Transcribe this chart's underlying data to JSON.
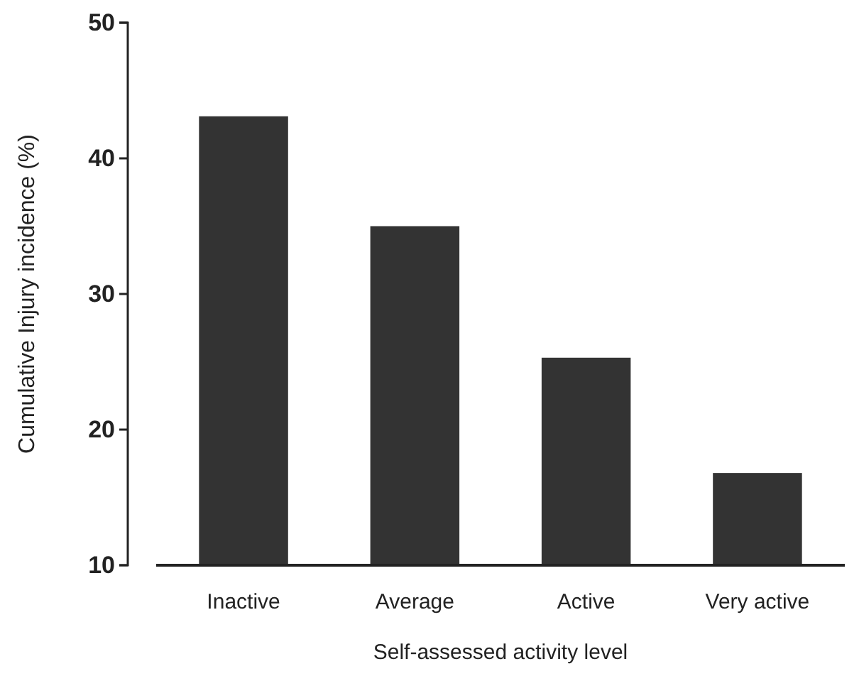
{
  "chart_data": {
    "type": "bar",
    "xlabel": "Self-assessed activity level",
    "ylabel": "Cumulative Injury incidence (%)",
    "categories": [
      "Inactive",
      "Average",
      "Active",
      "Very active"
    ],
    "values": [
      43.1,
      35.0,
      25.3,
      16.8
    ],
    "color": "#333333",
    "ylim": [
      10,
      50
    ],
    "yticks": [
      10,
      20,
      30,
      40,
      50
    ],
    "grid": false
  }
}
